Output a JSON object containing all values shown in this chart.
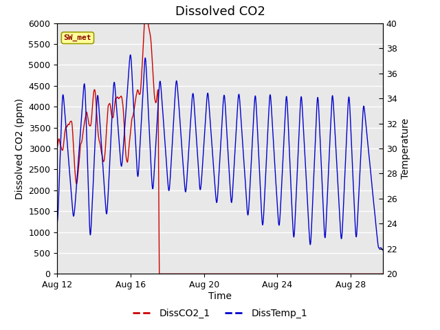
{
  "title": "Dissolved CO2",
  "xlabel": "Time",
  "ylabel_left": "Dissolved CO2 (ppm)",
  "ylabel_right": "Temperature",
  "ylim_left": [
    0,
    6000
  ],
  "ylim_right": [
    20,
    40
  ],
  "yticks_left": [
    0,
    500,
    1000,
    1500,
    2000,
    2500,
    3000,
    3500,
    4000,
    4500,
    5000,
    5500,
    6000
  ],
  "yticks_right": [
    20,
    22,
    24,
    26,
    28,
    30,
    32,
    34,
    36,
    38,
    40
  ],
  "background_color": "#ffffff",
  "plot_bg_color": "#e8e8e8",
  "grid_color": "#ffffff",
  "color_co2": "#cc0000",
  "color_temp": "#0000cc",
  "legend_labels": [
    "DissCO2_1",
    "DissTemp_1"
  ],
  "sw_met_box_color": "#ffff99",
  "sw_met_text_color": "#8b0000",
  "title_fontsize": 13,
  "axis_fontsize": 10,
  "tick_fontsize": 9,
  "legend_fontsize": 10,
  "temp_cycle_days": 1.2,
  "temp_peak_days": [
    0.3,
    1.5,
    2.2,
    3.1,
    4.0,
    4.8,
    5.6,
    6.5,
    7.4,
    8.2,
    9.1,
    9.9,
    10.8,
    11.6,
    12.5,
    13.3,
    14.2,
    15.0,
    15.9,
    16.7
  ],
  "temp_peak_vals": [
    35,
    36,
    35,
    36,
    38,
    38,
    36,
    36,
    35,
    35,
    35,
    35,
    35,
    35,
    35,
    35,
    35,
    35,
    35,
    34
  ],
  "temp_trough_days": [
    0.0,
    0.9,
    1.8,
    2.7,
    3.5,
    4.4,
    5.2,
    6.1,
    7.0,
    7.8,
    8.7,
    9.5,
    10.4,
    11.2,
    12.1,
    12.9,
    13.8,
    14.6,
    15.5,
    16.3,
    17.5
  ],
  "temp_trough_vals": [
    23,
    24,
    22,
    24,
    28,
    27,
    26,
    26,
    26,
    26,
    25,
    25,
    24,
    23,
    23,
    22,
    21.5,
    22,
    22,
    22,
    22
  ]
}
